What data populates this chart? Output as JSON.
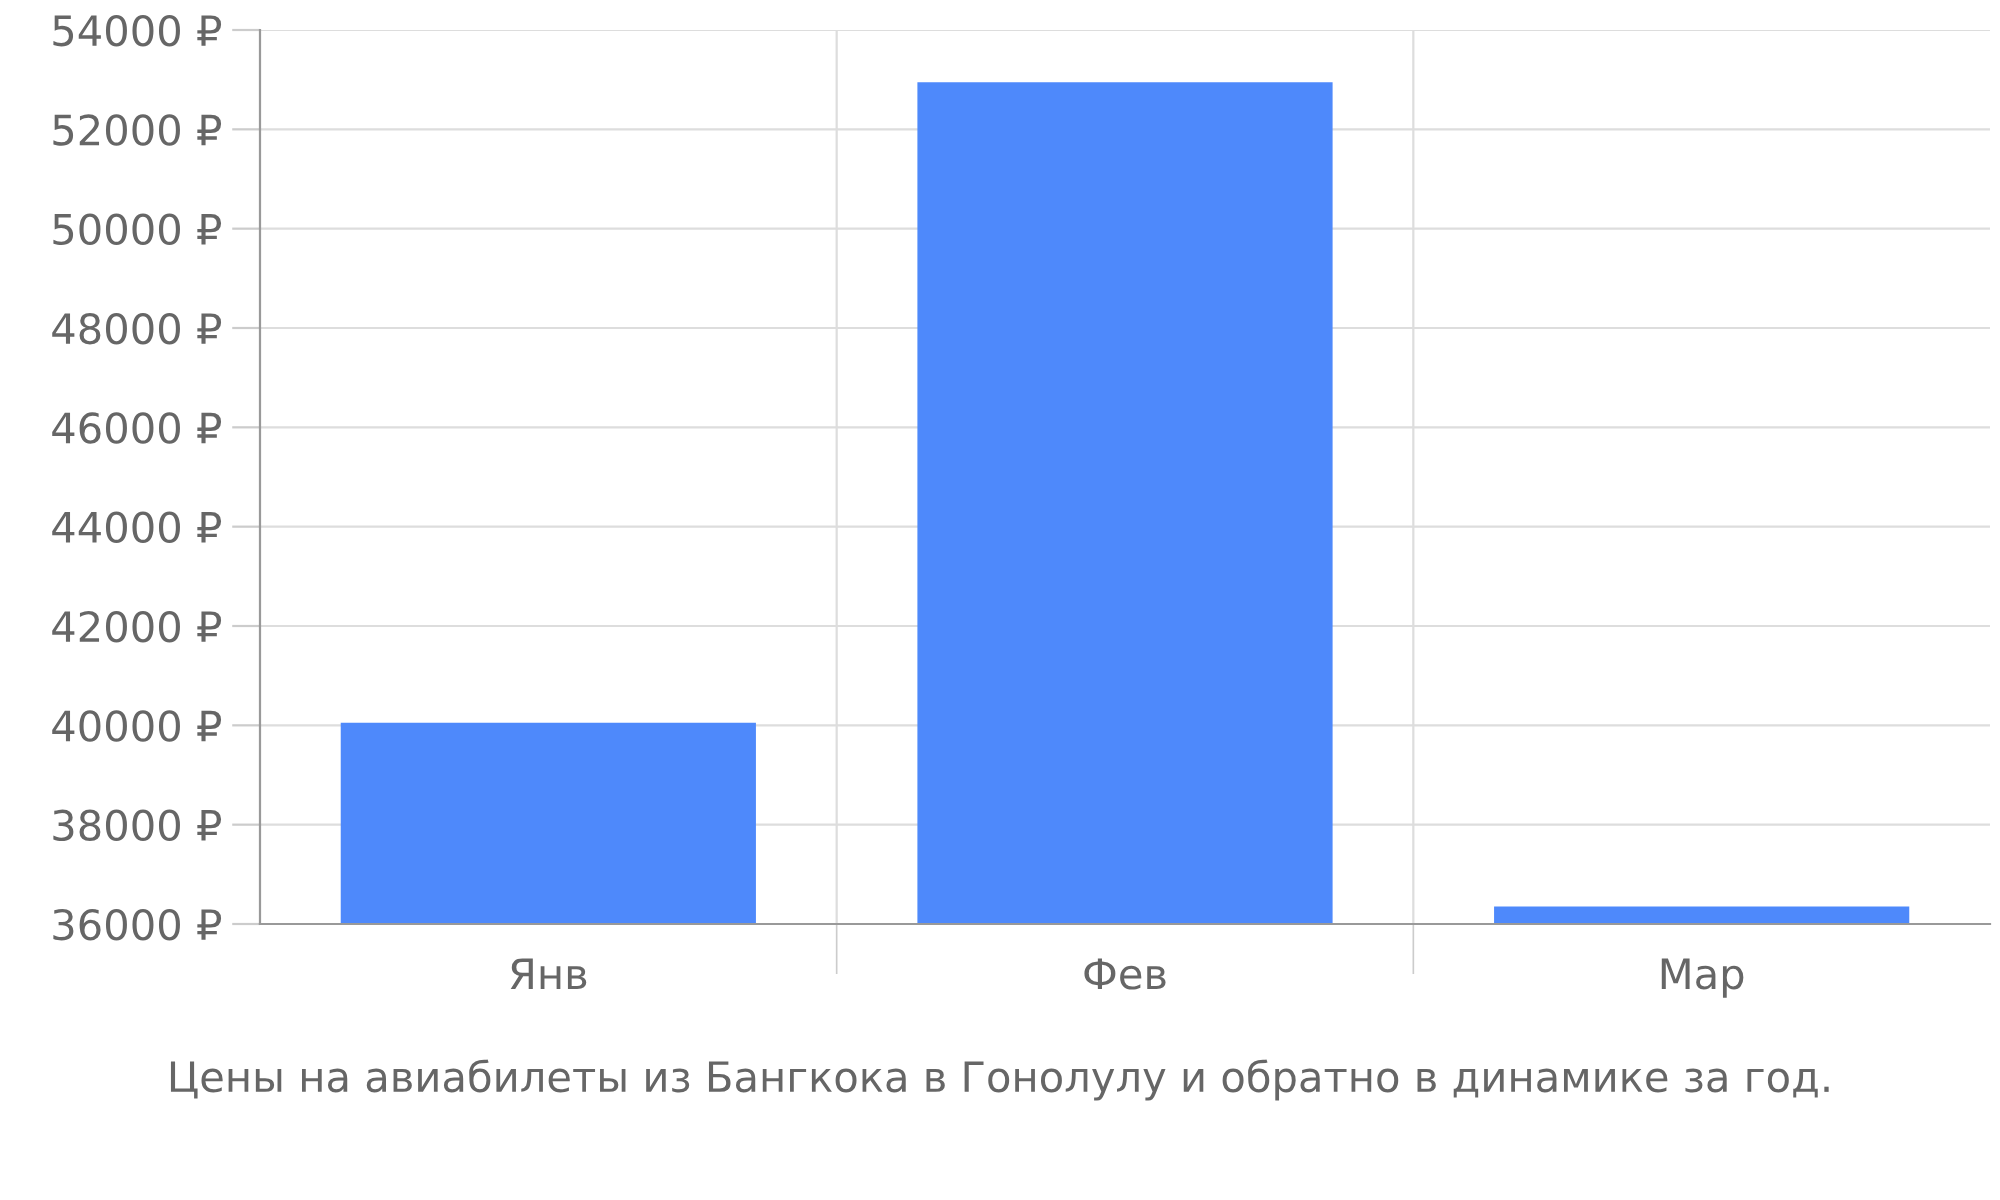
{
  "chart_data": {
    "type": "bar",
    "categories": [
      "Янв",
      "Фев",
      "Мар"
    ],
    "values": [
      40050,
      52950,
      36350
    ],
    "color": "#4e89fb",
    "ylim": [
      36000,
      54000
    ],
    "yticks": [
      {
        "value": 36000,
        "label": "36000 ₽"
      },
      {
        "value": 38000,
        "label": "38000 ₽"
      },
      {
        "value": 40000,
        "label": "40000 ₽"
      },
      {
        "value": 42000,
        "label": "42000 ₽"
      },
      {
        "value": 44000,
        "label": "44000 ₽"
      },
      {
        "value": 46000,
        "label": "46000 ₽"
      },
      {
        "value": 48000,
        "label": "48000 ₽"
      },
      {
        "value": 50000,
        "label": "50000 ₽"
      },
      {
        "value": 52000,
        "label": "52000 ₽"
      },
      {
        "value": 54000,
        "label": "54000 ₽"
      }
    ],
    "grid": true,
    "annotations": [
      "Цены на авиабилеты из Бангкока в Гонолулу и обратно в динамике за год."
    ]
  }
}
